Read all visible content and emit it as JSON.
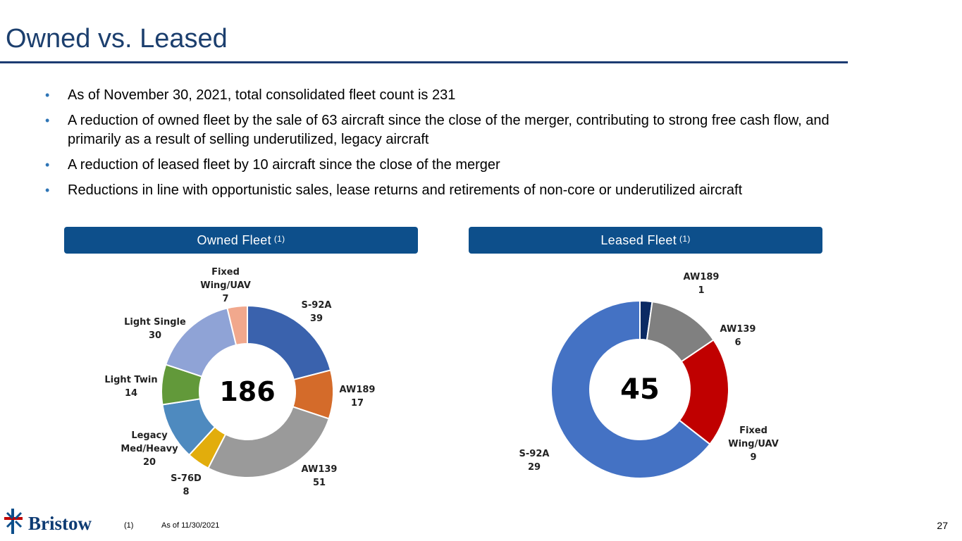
{
  "slide": {
    "title": "Owned vs. Leased",
    "bullets": [
      "As of November 30, 2021, total consolidated fleet count is 231",
      "A reduction of owned fleet by the sale of 63 aircraft since the close of the merger, contributing to strong free cash flow, and primarily as a result of selling underutilized, legacy aircraft",
      "A reduction of leased fleet by 10 aircraft since the close of the merger",
      "Reductions in line with opportunistic sales, lease returns and retirements of non-core or underutilized aircraft"
    ],
    "bullet_glyph": "•",
    "owned_header": "Owned Fleet",
    "leased_header": "Leased Fleet",
    "header_sup": "(1)",
    "footnote_mark": "(1)",
    "footnote_text": "As of 11/30/2021",
    "page_number": "27",
    "logo_text": "Bristow",
    "colors": {
      "title": "#1c3f6e",
      "header_bg": "#0d4f8b",
      "bullet": "#2e75b6"
    }
  },
  "chart_data": [
    {
      "type": "donut",
      "title": "Owned Fleet",
      "center_total": "186",
      "series": [
        {
          "label": "S-92A",
          "value": 39,
          "color": "#3a62ad"
        },
        {
          "label": "AW189",
          "value": 17,
          "color": "#d46b2a"
        },
        {
          "label": "AW139",
          "value": 51,
          "color": "#9a9a9a"
        },
        {
          "label": "S-76D",
          "value": 8,
          "color": "#e2ad0c"
        },
        {
          "label": "Legacy Med/Heavy",
          "value": 20,
          "color": "#4e8abf"
        },
        {
          "label": "Light Twin",
          "value": 14,
          "color": "#62993a"
        },
        {
          "label": "Light Single",
          "value": 30,
          "color": "#8fa3d6"
        },
        {
          "label": "Fixed Wing/UAV",
          "value": 7,
          "color": "#f1a88d"
        }
      ]
    },
    {
      "type": "donut",
      "title": "Leased Fleet",
      "center_total": "45",
      "series": [
        {
          "label": "AW189",
          "value": 1,
          "color": "#0b2a63"
        },
        {
          "label": "AW139",
          "value": 6,
          "color": "#808080"
        },
        {
          "label": "Fixed Wing/UAV",
          "value": 9,
          "color": "#c00000"
        },
        {
          "label": "S-92A",
          "value": 29,
          "color": "#4472c4"
        }
      ]
    }
  ]
}
